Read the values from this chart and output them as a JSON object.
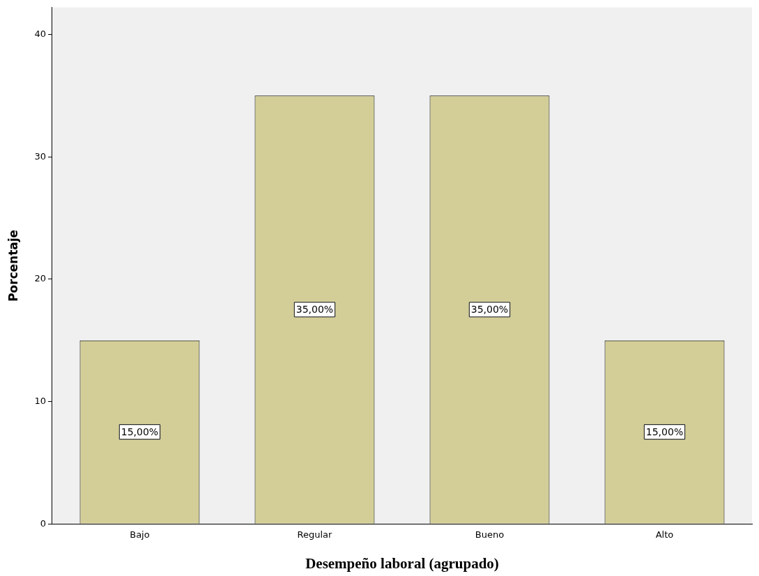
{
  "chart_data": {
    "type": "bar",
    "xlabel": "Desempeño laboral (agrupado)",
    "ylabel": "Porcentaje",
    "categories": [
      "Bajo",
      "Regular",
      "Bueno",
      "Alto"
    ],
    "values": [
      15,
      35,
      35,
      15
    ],
    "color": "#d3ce97",
    "value_labels": [
      "15,00%",
      "35,00%",
      "35,00%",
      "15,00%"
    ],
    "ylim": [
      0,
      42.2
    ],
    "yticks": [
      0,
      10,
      20,
      30,
      40
    ],
    "grid": false,
    "legend": false
  }
}
